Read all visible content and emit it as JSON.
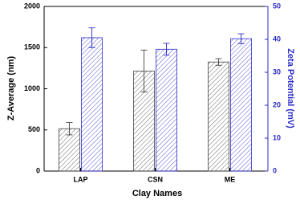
{
  "chart_data": {
    "type": "bar",
    "xlabel": "Clay Names",
    "ylabel": "Z-Average (nm)",
    "y2label": "Zeta Potential (mV)",
    "categories": [
      "LAP",
      "CSN",
      "ME"
    ],
    "series": [
      {
        "color": "#444444",
        "values": [
          515,
          1215,
          1325
        ],
        "errors": [
          75,
          255,
          40
        ]
      },
      {
        "color": "#2a2ac8",
        "axis": "y2",
        "values": [
          40.5,
          37,
          40.2
        ],
        "errors": [
          3,
          1.8,
          1.5
        ]
      }
    ],
    "ylim": [
      0,
      2000
    ],
    "yticks": [
      0,
      500,
      1000,
      1500,
      2000
    ],
    "y2lim": [
      0,
      50
    ],
    "y2ticks": [
      0,
      10,
      20,
      30,
      40,
      50
    ],
    "hatch": true
  }
}
